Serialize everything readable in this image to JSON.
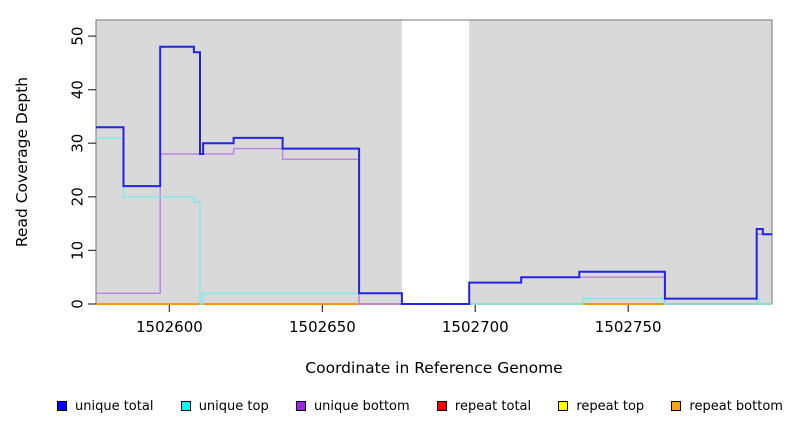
{
  "axes": {
    "xlabel": "Coordinate in Reference Genome",
    "ylabel": "Read Coverage Depth"
  },
  "chart_data": {
    "type": "line",
    "subtype": "step-coverage",
    "title": "",
    "xlabel": "Coordinate in Reference Genome",
    "ylabel": "Read Coverage Depth",
    "xlim": [
      1502576,
      1502797
    ],
    "ylim": [
      0,
      53
    ],
    "grid": false,
    "legend_position": "bottom",
    "x_ticks": {
      "values": [
        1502600,
        1502650,
        1502700,
        1502750
      ],
      "labels": [
        "1502600",
        "1502650",
        "1502700",
        "1502750"
      ]
    },
    "y_ticks": {
      "values": [
        0,
        10,
        20,
        30,
        40,
        50
      ],
      "labels": [
        "0",
        "10",
        "20",
        "30",
        "40",
        "50"
      ]
    },
    "shaded_regions": [
      {
        "x0": 1502576,
        "x1": 1502676,
        "color": "#d9d9d9"
      },
      {
        "x0": 1502698,
        "x1": 1502797,
        "color": "#d9d9d9"
      }
    ],
    "uncovered_gap": {
      "x0": 1502676,
      "x1": 1502698
    },
    "series": [
      {
        "name": "repeat total",
        "line_color": "#dd2222",
        "legend_color": "#ff0000",
        "width": 1.4,
        "steps": [
          [
            1502576,
            0
          ]
        ]
      },
      {
        "name": "repeat top",
        "line_color": "#f5f57f",
        "legend_color": "#ffff00",
        "width": 1.4,
        "steps": [
          [
            1502576,
            0
          ]
        ]
      },
      {
        "name": "repeat bottom",
        "line_color": "#ff8c00",
        "legend_color": "#ffa500",
        "width": 1.4,
        "steps": [
          [
            1502576,
            0
          ]
        ]
      },
      {
        "name": "unique bottom",
        "line_color": "#b784e0",
        "legend_color": "#a020f0",
        "width": 1.4,
        "steps": [
          [
            1502576,
            2
          ],
          [
            1502597,
            28
          ],
          [
            1502621,
            29
          ],
          [
            1502637,
            27
          ],
          [
            1502662,
            0
          ],
          [
            1502698,
            4
          ],
          [
            1502715,
            5
          ],
          [
            1502762,
            0
          ],
          [
            1502792,
            13
          ]
        ]
      },
      {
        "name": "unique top",
        "line_color": "#7fe9e9",
        "legend_color": "#00ffff",
        "width": 1.4,
        "steps": [
          [
            1502576,
            31
          ],
          [
            1502585,
            20
          ],
          [
            1502608,
            19
          ],
          [
            1502610,
            0
          ],
          [
            1502611,
            2
          ],
          [
            1502676,
            0
          ],
          [
            1502735,
            1
          ],
          [
            1502762,
            0
          ],
          [
            1502792,
            1
          ],
          [
            1502793,
            0
          ]
        ]
      },
      {
        "name": "unique total",
        "line_color": "#2323e6",
        "legend_color": "#0000ff",
        "width": 2,
        "steps": [
          [
            1502576,
            33
          ],
          [
            1502585,
            22
          ],
          [
            1502597,
            48
          ],
          [
            1502608,
            47
          ],
          [
            1502610,
            28
          ],
          [
            1502611,
            30
          ],
          [
            1502621,
            31
          ],
          [
            1502637,
            29
          ],
          [
            1502662,
            2
          ],
          [
            1502676,
            0
          ],
          [
            1502698,
            4
          ],
          [
            1502715,
            5
          ],
          [
            1502734,
            6
          ],
          [
            1502762,
            1
          ],
          [
            1502792,
            14
          ],
          [
            1502794,
            13
          ]
        ]
      }
    ],
    "baseline_segments": [
      {
        "x0": 1502576,
        "x1": 1502662,
        "color": "#ff8c00"
      },
      {
        "x0": 1502662,
        "x1": 1502676,
        "color": "#e06aa8"
      },
      {
        "x0": 1502698,
        "x1": 1502735,
        "color": "#94dd94"
      },
      {
        "x0": 1502735,
        "x1": 1502762,
        "color": "#ff8c00"
      },
      {
        "x0": 1502762,
        "x1": 1502792,
        "color": "#e0559b"
      },
      {
        "x0": 1502792,
        "x1": 1502797,
        "color": "#94dd94"
      }
    ]
  },
  "legend": {
    "items": [
      {
        "label": "unique total",
        "color": "#0000ff"
      },
      {
        "label": "unique top",
        "color": "#00ffff"
      },
      {
        "label": "unique bottom",
        "color": "#a020f0"
      },
      {
        "label": "repeat total",
        "color": "#ff0000"
      },
      {
        "label": "repeat top",
        "color": "#ffff00"
      },
      {
        "label": "repeat bottom",
        "color": "#ffa500"
      }
    ]
  }
}
